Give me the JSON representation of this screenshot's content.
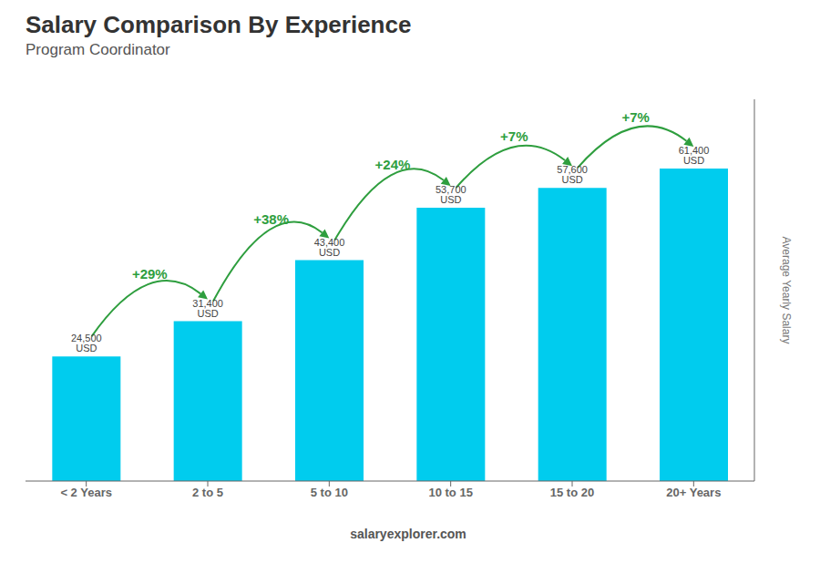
{
  "chart_data": {
    "type": "bar",
    "title": "Salary Comparison By Experience",
    "subtitle": "Program Coordinator",
    "ylabel": "Average Yearly Salary",
    "categories": [
      "< 2 Years",
      "2 to 5",
      "5 to 10",
      "10 to 15",
      "15 to 20",
      "20+ Years"
    ],
    "values": [
      24500,
      31400,
      43400,
      53700,
      57600,
      61400
    ],
    "value_labels": [
      "24,500 USD",
      "31,400 USD",
      "43,400 USD",
      "53,700 USD",
      "57,600 USD",
      "61,400 USD"
    ],
    "data_labels": true,
    "color": "#00ccee",
    "ylim": [
      0,
      75000
    ],
    "tick_labels": "x",
    "annotations": [
      "+29%",
      "+38%",
      "+24%",
      "+7%",
      "+7%"
    ],
    "footer": "salaryexplorer.com"
  }
}
